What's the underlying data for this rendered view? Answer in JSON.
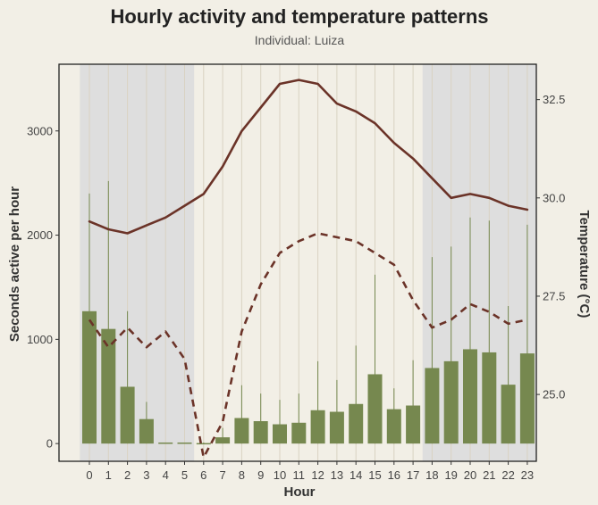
{
  "chart_data": {
    "type": "bar",
    "title": "Hourly activity and temperature patterns",
    "subtitle": "Individual: Luiza",
    "xlabel": "Hour",
    "ylabel": "Seconds active per hour",
    "y2label": "Temperature (°C)",
    "categories": [
      "0",
      "1",
      "2",
      "3",
      "4",
      "5",
      "6",
      "7",
      "8",
      "9",
      "10",
      "11",
      "12",
      "13",
      "14",
      "15",
      "16",
      "17",
      "18",
      "19",
      "20",
      "21",
      "22",
      "23"
    ],
    "ylim": [
      -170,
      3640
    ],
    "y2lim": [
      23.3,
      33.4
    ],
    "yticks": [
      0,
      1000,
      2000,
      3000
    ],
    "y2ticks": [
      25.0,
      27.5,
      30.0,
      32.5
    ],
    "y2tick_labels": [
      "25.0",
      "27.5",
      "30.0",
      "32.5"
    ],
    "night_hours": [
      [
        0,
        5
      ],
      [
        18,
        23
      ]
    ],
    "grid": "vertical",
    "colors": {
      "background": "#f2efe6",
      "night_shade": "#dedede",
      "grid": "#d9d2c2",
      "bar": "#76884f",
      "errorbar": "#76884f",
      "temp_line": "#6b3328"
    },
    "activity_bar": {
      "values": [
        1270,
        1100,
        545,
        235,
        10,
        10,
        5,
        60,
        245,
        215,
        185,
        200,
        320,
        305,
        380,
        665,
        330,
        365,
        725,
        790,
        905,
        875,
        565,
        865
      ],
      "error_upper": [
        2400,
        2520,
        1270,
        400,
        10,
        10,
        10,
        150,
        560,
        480,
        420,
        480,
        790,
        610,
        940,
        1620,
        530,
        800,
        1790,
        1890,
        2170,
        2140,
        1320,
        2100
      ]
    },
    "series": [
      {
        "style": "solid",
        "values": [
          29.4,
          29.2,
          29.1,
          29.3,
          29.5,
          29.8,
          30.1,
          30.8,
          31.7,
          32.3,
          32.9,
          33.0,
          32.9,
          32.4,
          32.2,
          31.9,
          31.4,
          31.0,
          30.5,
          30.0,
          30.1,
          30.0,
          29.8,
          29.7
        ]
      },
      {
        "style": "dashed",
        "values": [
          26.9,
          26.2,
          26.7,
          26.2,
          26.6,
          25.9,
          23.4,
          24.3,
          26.6,
          27.8,
          28.6,
          28.9,
          29.1,
          29.0,
          28.9,
          28.6,
          28.3,
          27.4,
          26.7,
          26.9,
          27.3,
          27.1,
          26.8,
          26.9
        ]
      }
    ]
  }
}
